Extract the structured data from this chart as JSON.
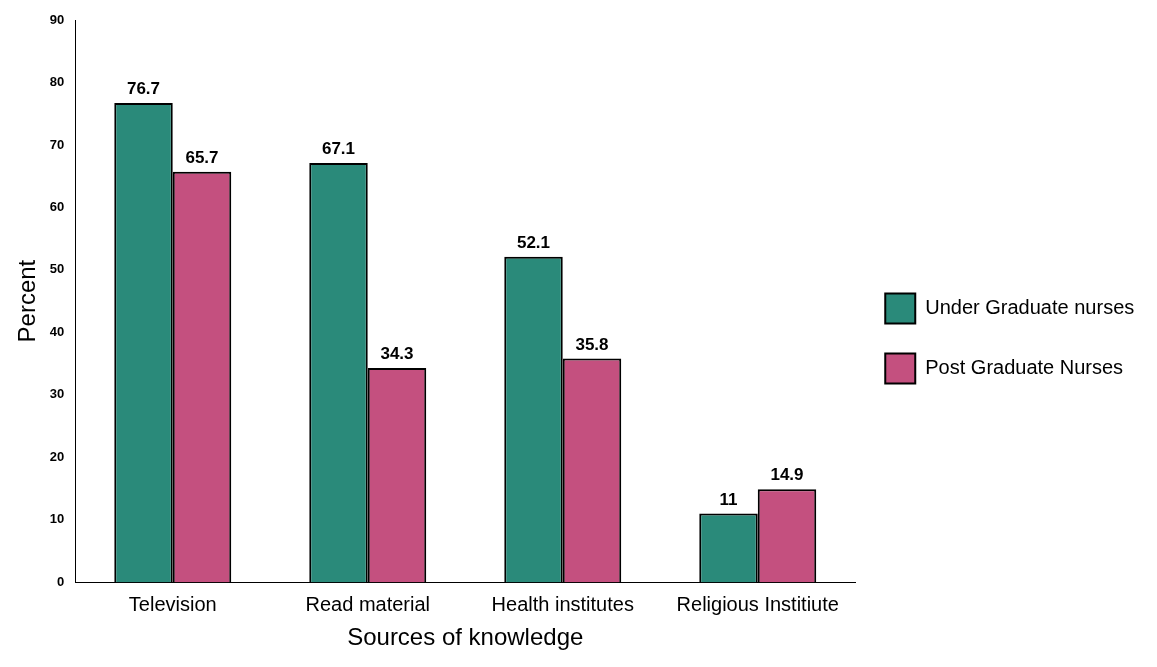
{
  "chart_data": {
    "type": "bar",
    "xlabel": "Sources of knowledge",
    "ylabel": "Percent",
    "categories": [
      "Television",
      "Read material",
      "Health institutes",
      "Religious Institiute"
    ],
    "series": [
      {
        "name": "Under Graduate nurses",
        "color": "#2a8a7a",
        "values": [
          76.7,
          67.1,
          52.1,
          11
        ]
      },
      {
        "name": "Post Graduate Nurses",
        "color": "#c4507f",
        "values": [
          65.7,
          34.3,
          35.8,
          14.9
        ]
      }
    ],
    "ylim": [
      0,
      90
    ],
    "yticks": [
      0,
      10,
      20,
      30,
      40,
      50,
      60,
      70,
      80,
      90
    ],
    "grid": false,
    "legend": "right",
    "data_labels": true
  }
}
